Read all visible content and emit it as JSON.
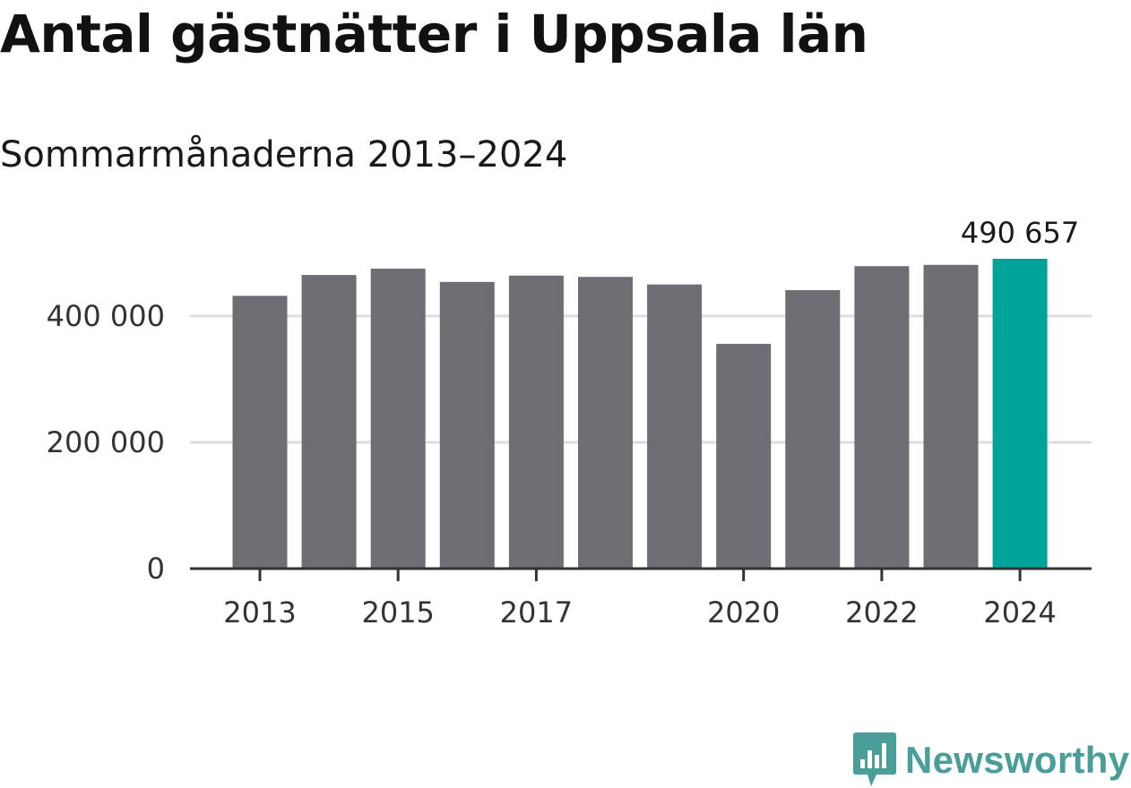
{
  "title": "Antal gästnätter i Uppsala län",
  "subtitle": "Sommarmånaderna 2013–2024",
  "brand": {
    "name": "Newsworthy",
    "logo_icon": "newsworthy-chart-logo-icon",
    "color": "#4a9e9a"
  },
  "colors": {
    "bar": "#6e6d74",
    "highlight": "#00a39a",
    "grid": "#dddddd",
    "axis": "#333333"
  },
  "chart_data": {
    "type": "bar",
    "categories": [
      "2013",
      "2014",
      "2015",
      "2016",
      "2017",
      "2018",
      "2019",
      "2020",
      "2021",
      "2022",
      "2023",
      "2024"
    ],
    "values": [
      432000,
      465000,
      475000,
      454000,
      464000,
      462000,
      450000,
      356000,
      441000,
      479000,
      481000,
      490657
    ],
    "highlight_index": 11,
    "data_labels": [
      {
        "index": 11,
        "text": "490 657"
      }
    ],
    "x_tick_labels": [
      {
        "index": 0,
        "text": "2013"
      },
      {
        "index": 2,
        "text": "2015"
      },
      {
        "index": 4,
        "text": "2017"
      },
      {
        "index": 7,
        "text": "2020"
      },
      {
        "index": 9,
        "text": "2022"
      },
      {
        "index": 11,
        "text": "2024"
      }
    ],
    "y_ticks": [
      {
        "value": 0,
        "text": "0"
      },
      {
        "value": 200000,
        "text": "200 000"
      },
      {
        "value": 400000,
        "text": "400 000"
      }
    ],
    "ylim": [
      0,
      490657
    ],
    "grid": true,
    "legend": "none",
    "xlabel": "",
    "ylabel": ""
  }
}
